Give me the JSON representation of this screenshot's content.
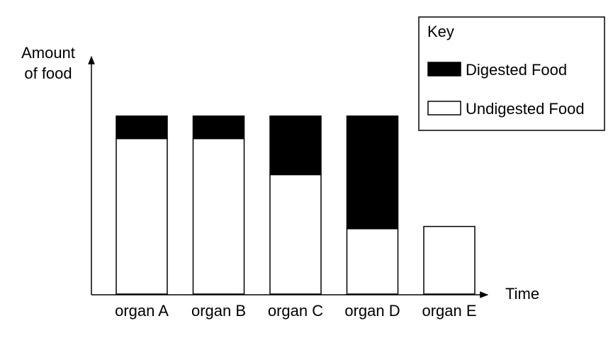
{
  "chart_data": {
    "type": "bar",
    "stacked": true,
    "title": "",
    "xlabel": "Time",
    "ylabel_lines": [
      "Amount",
      "of food"
    ],
    "categories": [
      "organ A",
      "organ B",
      "organ C",
      "organ D",
      "organ E"
    ],
    "series": [
      {
        "name": "Undigested Food",
        "color": "#ffffff",
        "values": [
          69,
          69,
          53,
          29,
          30
        ]
      },
      {
        "name": "Digested Food",
        "color": "#000000",
        "values": [
          10,
          10,
          26,
          50,
          0
        ]
      }
    ],
    "ylim": [
      0,
      100
    ],
    "grid": false,
    "legend": {
      "title": "Key",
      "placement": "top-right",
      "entries": [
        "Digested Food",
        "Undigested Food"
      ]
    }
  }
}
